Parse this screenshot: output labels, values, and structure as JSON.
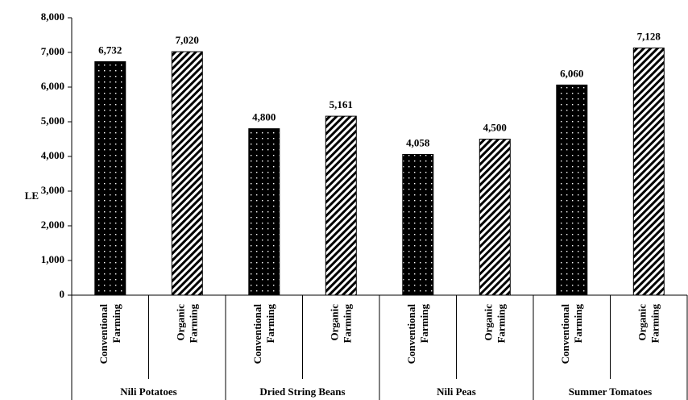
{
  "chart_data": {
    "type": "bar",
    "ylabel": "LE",
    "ylim": [
      0,
      8000
    ],
    "yticks": [
      "0",
      "1,000",
      "2,000",
      "3,000",
      "4,000",
      "5,000",
      "6,000",
      "7,000",
      "8,000"
    ],
    "groups": [
      "Nili Potatoes",
      "Dried String Beans",
      "Nili Peas",
      "Summer Tomatoes"
    ],
    "categories": [
      "Conventional Farming",
      "Organic Farming"
    ],
    "category_lines": [
      [
        "Conventional",
        "Farming"
      ],
      [
        "Organic",
        "Farming"
      ]
    ],
    "category_patterns": [
      "dots",
      "diagonal-stripes"
    ],
    "values": [
      [
        6732,
        7020
      ],
      [
        4800,
        5161
      ],
      [
        4058,
        4500
      ],
      [
        6060,
        7128
      ]
    ],
    "data_labels": [
      [
        "6,732",
        "7,020"
      ],
      [
        "4,800",
        "5,161"
      ],
      [
        "4,058",
        "4,500"
      ],
      [
        "6,060",
        "7,128"
      ]
    ],
    "grid": false,
    "legend": "none"
  }
}
